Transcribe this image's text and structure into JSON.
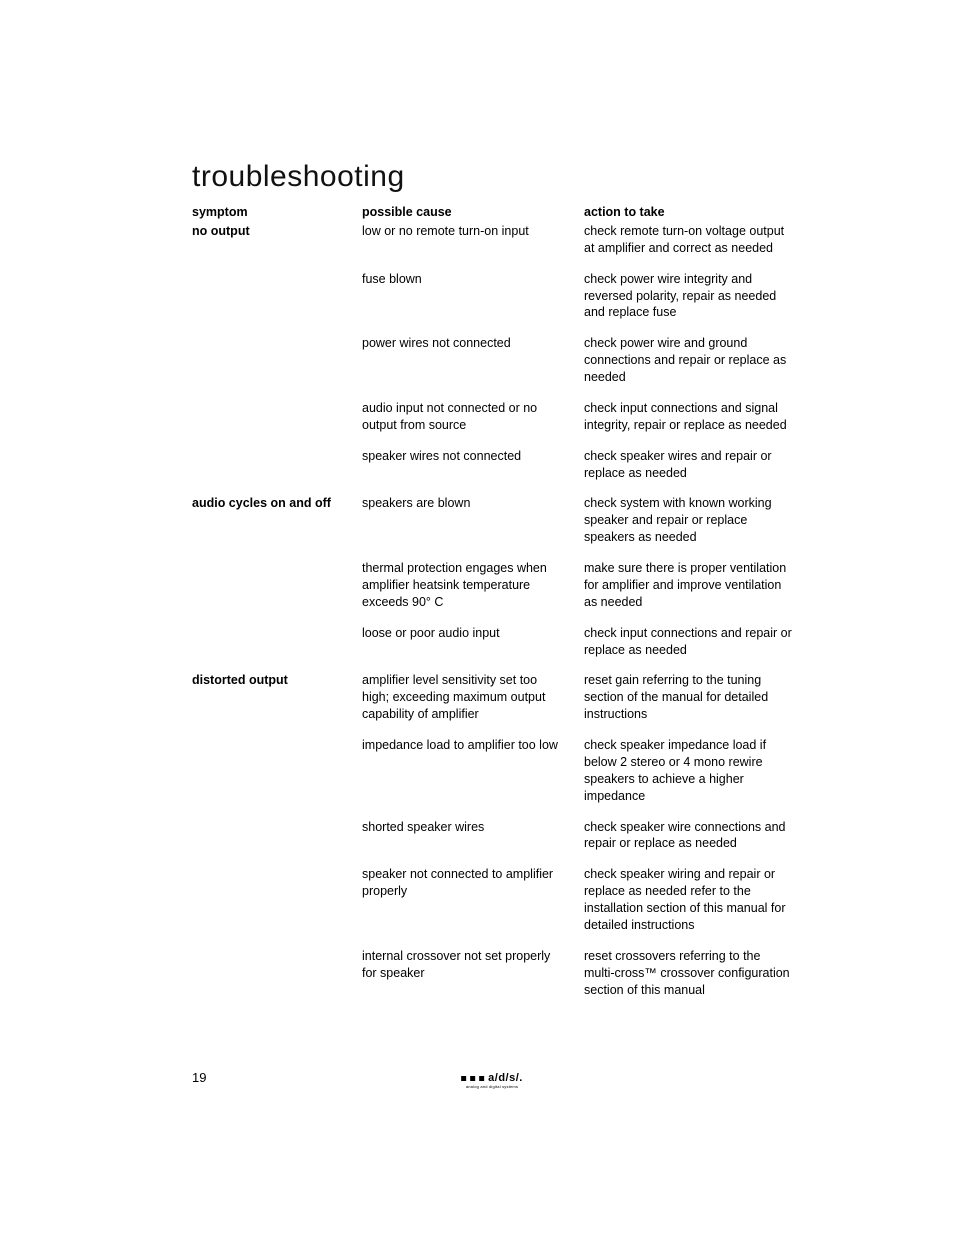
{
  "page": {
    "title": "troubleshooting",
    "page_number": "19",
    "colors": {
      "background": "#ffffff",
      "text": "#000000"
    },
    "typography": {
      "title_fontsize_pt": 22,
      "title_weight": 300,
      "body_fontsize_pt": 9.5,
      "body_weight": 400,
      "bold_weight": 700,
      "font_family": "Helvetica Neue"
    },
    "columns": {
      "symptom_header": "symptom",
      "cause_header": "possible cause",
      "action_header": "action to take"
    },
    "rows": [
      {
        "symptom": "no output",
        "cause": "low or no remote turn-on input",
        "action": "check remote turn-on voltage output at amplifier and correct as needed"
      },
      {
        "symptom": "",
        "cause": "fuse blown",
        "action": "check power wire integrity and reversed polarity, repair as needed and replace fuse"
      },
      {
        "symptom": "",
        "cause": "power wires not connected",
        "action": "check power wire and ground connections and repair or replace as needed"
      },
      {
        "symptom": "",
        "cause": "audio input not connected or no output from source",
        "action": "check input connections and signal integrity, repair or replace as needed"
      },
      {
        "symptom": "",
        "cause": "speaker wires not connected",
        "action": "check speaker wires and repair or replace as needed"
      },
      {
        "symptom": "audio cycles on and off",
        "cause": "speakers are blown",
        "action": "check system with known working speaker and repair or replace speakers as needed"
      },
      {
        "symptom": "",
        "cause": "thermal protection engages when amplifier heatsink temperature exceeds 90° C",
        "action": "make sure there is proper ventilation for amplifier and improve ventilation as needed"
      },
      {
        "symptom": "",
        "cause": "loose or poor audio input",
        "action": "check input connections and repair or replace as needed"
      },
      {
        "symptom": "distorted output",
        "cause": "amplifier level sensitivity set too high; exceeding maximum output capability of amplifier",
        "action": "reset gain referring to the tuning section of the manual for detailed instructions"
      },
      {
        "symptom": "",
        "cause": "impedance load to amplifier too low",
        "action": "check speaker impedance load if below 2  stereo or 4  mono rewire speakers to achieve a higher impedance"
      },
      {
        "symptom": "",
        "cause": "shorted speaker wires",
        "action": "check speaker wire connections and repair or replace as needed"
      },
      {
        "symptom": "",
        "cause": "speaker not connected to amplifier properly",
        "action": "check speaker wiring and repair or replace as needed refer to the installation  section of this manual for detailed instructions"
      },
      {
        "symptom": "",
        "cause": "internal crossover not set properly for speaker",
        "action": "reset crossovers referring to the multi-cross™ crossover configuration section of this manual"
      }
    ],
    "footer": {
      "brand_text": "a/d/s/.",
      "brand_tagline": "analog and digital systems",
      "square_count": 3,
      "square_color": "#000000"
    }
  }
}
